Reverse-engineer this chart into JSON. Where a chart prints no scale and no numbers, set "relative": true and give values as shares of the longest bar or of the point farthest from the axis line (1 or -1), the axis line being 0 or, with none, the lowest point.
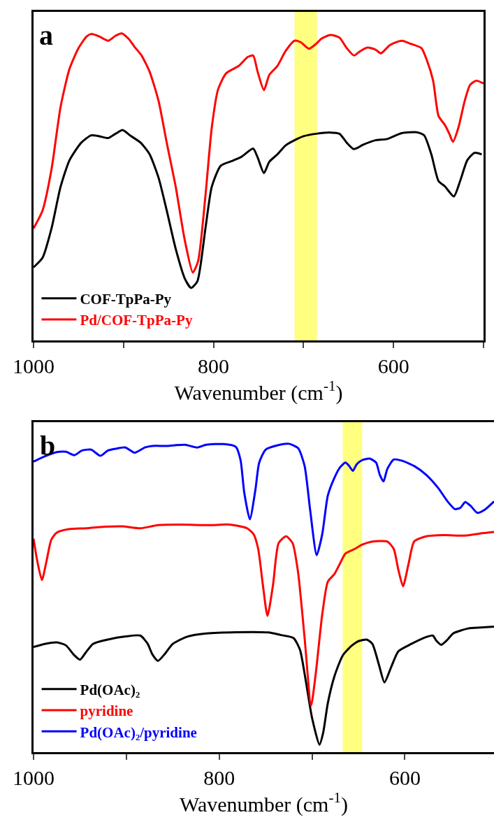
{
  "chart_data": [
    {
      "type": "line",
      "relative": true,
      "xlabel": "Wavenumber (cm$^{-1}$)",
      "xlim": [
        1000,
        500
      ],
      "xticks": [
        1000,
        {
          "value": 900,
          "label": null
        },
        800,
        {
          "value": 700,
          "label": null
        },
        600,
        {
          "value": 500,
          "label": null
        }
      ],
      "legend": "bottom left",
      "annotations": [
        "a"
      ],
      "bands": [
        {
          "axis": "x",
          "from": 710,
          "to": 685,
          "color": "#ffff80"
        }
      ],
      "series": [
        {
          "name": "COF-TpPa-Py",
          "color": "#000000",
          "x": [
            1000,
            990,
            980,
            970,
            960,
            947,
            936,
            927,
            917,
            909,
            901,
            893,
            881,
            871,
            861,
            852,
            842,
            832,
            825,
            818,
            809,
            802,
            792,
            779,
            769,
            756,
            751,
            744,
            738,
            729,
            720,
            710,
            700,
            686,
            670,
            660,
            652,
            644,
            634,
            620,
            607,
            591,
            574,
            566,
            558,
            550,
            543,
            533,
            526,
            518,
            510,
            502
          ],
          "values": [
            0.238,
            0.269,
            0.365,
            0.5,
            0.587,
            0.644,
            0.668,
            0.665,
            0.659,
            0.673,
            0.685,
            0.668,
            0.644,
            0.606,
            0.529,
            0.423,
            0.298,
            0.202,
            0.171,
            0.192,
            0.365,
            0.5,
            0.569,
            0.585,
            0.598,
            0.625,
            0.596,
            0.545,
            0.582,
            0.606,
            0.635,
            0.652,
            0.665,
            0.673,
            0.677,
            0.673,
            0.644,
            0.623,
            0.637,
            0.652,
            0.656,
            0.675,
            0.678,
            0.668,
            0.606,
            0.519,
            0.502,
            0.469,
            0.519,
            0.587,
            0.611,
            0.606
          ]
        },
        {
          "name": "Pd/COF-TpPa-Py",
          "color": "#ff0000",
          "x": [
            1000,
            990,
            980,
            970,
            960,
            950,
            941,
            936,
            927,
            917,
            909,
            902,
            894,
            888,
            880,
            871,
            861,
            852,
            842,
            832,
            823,
            817,
            809,
            802,
            795,
            786,
            772,
            762,
            756,
            751,
            744,
            738,
            729,
            720,
            710,
            703,
            694,
            686,
            680,
            670,
            660,
            652,
            644,
            637,
            629,
            620,
            614,
            604,
            591,
            581,
            569,
            563,
            556,
            550,
            543,
            538,
            534,
            528,
            521,
            515,
            508,
            500
          ],
          "values": [
            0.365,
            0.423,
            0.558,
            0.76,
            0.885,
            0.952,
            0.99,
            0.998,
            0.99,
            0.976,
            0.992,
            1.0,
            0.981,
            0.957,
            0.928,
            0.875,
            0.779,
            0.644,
            0.5,
            0.327,
            0.221,
            0.26,
            0.471,
            0.692,
            0.817,
            0.87,
            0.894,
            0.923,
            0.928,
            0.875,
            0.815,
            0.865,
            0.894,
            0.942,
            0.976,
            0.971,
            0.95,
            0.966,
            0.983,
            0.995,
            0.986,
            0.952,
            0.928,
            0.942,
            0.954,
            0.947,
            0.935,
            0.962,
            0.976,
            0.966,
            0.952,
            0.913,
            0.846,
            0.731,
            0.702,
            0.673,
            0.647,
            0.692,
            0.779,
            0.832,
            0.846,
            0.837
          ]
        }
      ]
    },
    {
      "type": "line",
      "relative": true,
      "xlabel": "Wavenumber (cm$^{-1}$)",
      "xlim": [
        1000,
        504
      ],
      "xticks": [
        1000,
        {
          "value": 900,
          "label": null
        },
        800,
        {
          "value": 700,
          "label": null
        },
        600
      ],
      "legend": "bottom left",
      "annotations": [
        "b"
      ],
      "bands": [
        {
          "axis": "x",
          "from": 667,
          "to": 646,
          "color": "#ffff80"
        }
      ],
      "series": [
        {
          "name": "Pd(OAc)₂",
          "color": "#000000",
          "x": [
            1000,
            988,
            975,
            965,
            957,
            950,
            944,
            936,
            920,
            901,
            885,
            877,
            872,
            866,
            859,
            850,
            834,
            814,
            782,
            747,
            734,
            720,
            713,
            707,
            700,
            692,
            688,
            683,
            676,
            667,
            657,
            649,
            641,
            635,
            628,
            622,
            615,
            607,
            593,
            580,
            570,
            566,
            561,
            554,
            548,
            532,
            519,
            504
          ],
          "values": [
            0.341,
            0.351,
            0.356,
            0.346,
            0.317,
            0.3,
            0.322,
            0.351,
            0.365,
            0.375,
            0.378,
            0.351,
            0.317,
            0.296,
            0.317,
            0.351,
            0.375,
            0.385,
            0.389,
            0.388,
            0.38,
            0.37,
            0.332,
            0.236,
            0.111,
            0.024,
            0.063,
            0.159,
            0.245,
            0.313,
            0.346,
            0.361,
            0.365,
            0.351,
            0.284,
            0.226,
            0.274,
            0.327,
            0.351,
            0.37,
            0.378,
            0.361,
            0.348,
            0.365,
            0.385,
            0.401,
            0.404,
            0.407
          ]
        },
        {
          "name": "pyridine",
          "color": "#ff0000",
          "x": [
            1000,
            996,
            991,
            986,
            981,
            975,
            962,
            943,
            924,
            904,
            885,
            866,
            840,
            811,
            789,
            770,
            763,
            758,
            753,
            748,
            742,
            736,
            728,
            721,
            715,
            708,
            701,
            696,
            689,
            683,
            676,
            670,
            664,
            654,
            646,
            635,
            619,
            612,
            607,
            602,
            596,
            590,
            577,
            558,
            535,
            519,
            504
          ],
          "values": [
            0.692,
            0.62,
            0.558,
            0.62,
            0.688,
            0.712,
            0.723,
            0.726,
            0.731,
            0.732,
            0.726,
            0.736,
            0.738,
            0.736,
            0.738,
            0.726,
            0.707,
            0.659,
            0.543,
            0.442,
            0.543,
            0.678,
            0.7,
            0.678,
            0.582,
            0.37,
            0.151,
            0.255,
            0.447,
            0.553,
            0.577,
            0.611,
            0.644,
            0.659,
            0.673,
            0.683,
            0.683,
            0.659,
            0.591,
            0.538,
            0.611,
            0.683,
            0.7,
            0.704,
            0.702,
            0.709,
            0.714
          ]
        },
        {
          "name": "Pd(OAc)₂/pyridine",
          "color": "#0000ff",
          "x": [
            1000,
            988,
            975,
            965,
            956,
            948,
            938,
            928,
            920,
            911,
            901,
            891,
            880,
            872,
            856,
            837,
            824,
            814,
            795,
            782,
            777,
            773,
            767,
            761,
            757,
            750,
            737,
            725,
            715,
            708,
            702,
            695,
            689,
            683,
            676,
            670,
            664,
            660,
            656,
            652,
            646,
            638,
            631,
            627,
            623,
            619,
            612,
            603,
            590,
            577,
            564,
            554,
            546,
            540,
            535,
            529,
            522,
            514,
            504
          ],
          "values": [
            0.942,
            0.959,
            0.973,
            0.974,
            0.963,
            0.978,
            0.981,
            0.961,
            0.978,
            0.984,
            0.988,
            0.971,
            0.988,
            0.993,
            0.993,
            0.997,
            0.988,
            0.997,
            0.999,
            0.99,
            0.947,
            0.841,
            0.755,
            0.851,
            0.938,
            0.981,
            0.995,
            1.0,
            0.986,
            0.928,
            0.784,
            0.639,
            0.707,
            0.832,
            0.889,
            0.923,
            0.939,
            0.928,
            0.912,
            0.933,
            0.947,
            0.952,
            0.939,
            0.899,
            0.878,
            0.918,
            0.949,
            0.945,
            0.928,
            0.899,
            0.856,
            0.813,
            0.788,
            0.793,
            0.811,
            0.798,
            0.776,
            0.786,
            0.813
          ]
        }
      ]
    }
  ]
}
